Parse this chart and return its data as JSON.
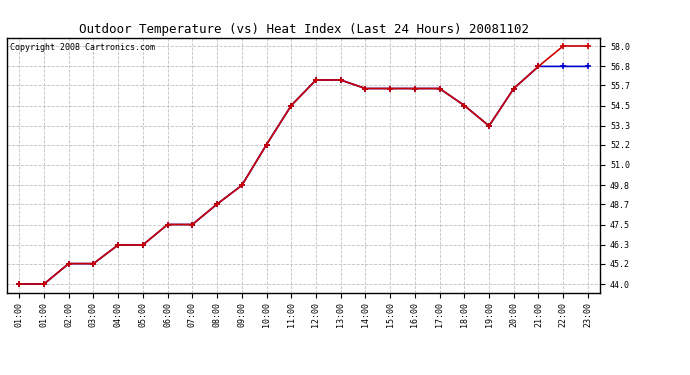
{
  "title": "Outdoor Temperature (vs) Heat Index (Last 24 Hours) 20081102",
  "copyright": "Copyright 2008 Cartronics.com",
  "x_labels": [
    "01:00",
    "01:00",
    "02:00",
    "03:00",
    "04:00",
    "05:00",
    "06:00",
    "07:00",
    "08:00",
    "09:00",
    "10:00",
    "11:00",
    "12:00",
    "13:00",
    "14:00",
    "15:00",
    "16:00",
    "17:00",
    "18:00",
    "19:00",
    "20:00",
    "21:00",
    "22:00",
    "23:00"
  ],
  "temp_values": [
    44.0,
    44.0,
    45.2,
    45.2,
    46.3,
    46.3,
    47.5,
    47.5,
    48.7,
    49.8,
    52.2,
    54.5,
    56.0,
    56.0,
    55.5,
    55.5,
    55.5,
    55.5,
    54.5,
    53.3,
    55.5,
    56.8,
    58.0,
    58.0
  ],
  "heat_values": [
    44.0,
    44.0,
    45.2,
    45.2,
    46.3,
    46.3,
    47.5,
    47.5,
    48.7,
    49.8,
    52.2,
    54.5,
    56.0,
    56.0,
    55.5,
    55.5,
    55.5,
    55.5,
    54.5,
    53.3,
    55.5,
    56.8,
    56.8,
    56.8
  ],
  "y_ticks": [
    44.0,
    45.2,
    46.3,
    47.5,
    48.7,
    49.8,
    51.0,
    52.2,
    53.3,
    54.5,
    55.7,
    56.8,
    58.0
  ],
  "ylim": [
    43.5,
    58.5
  ],
  "temp_color": "#cc0000",
  "heat_color": "#0000cc",
  "grid_color": "#c0c0c0",
  "bg_color": "#ffffff",
  "title_fontsize": 9,
  "tick_fontsize": 6,
  "copyright_fontsize": 6
}
